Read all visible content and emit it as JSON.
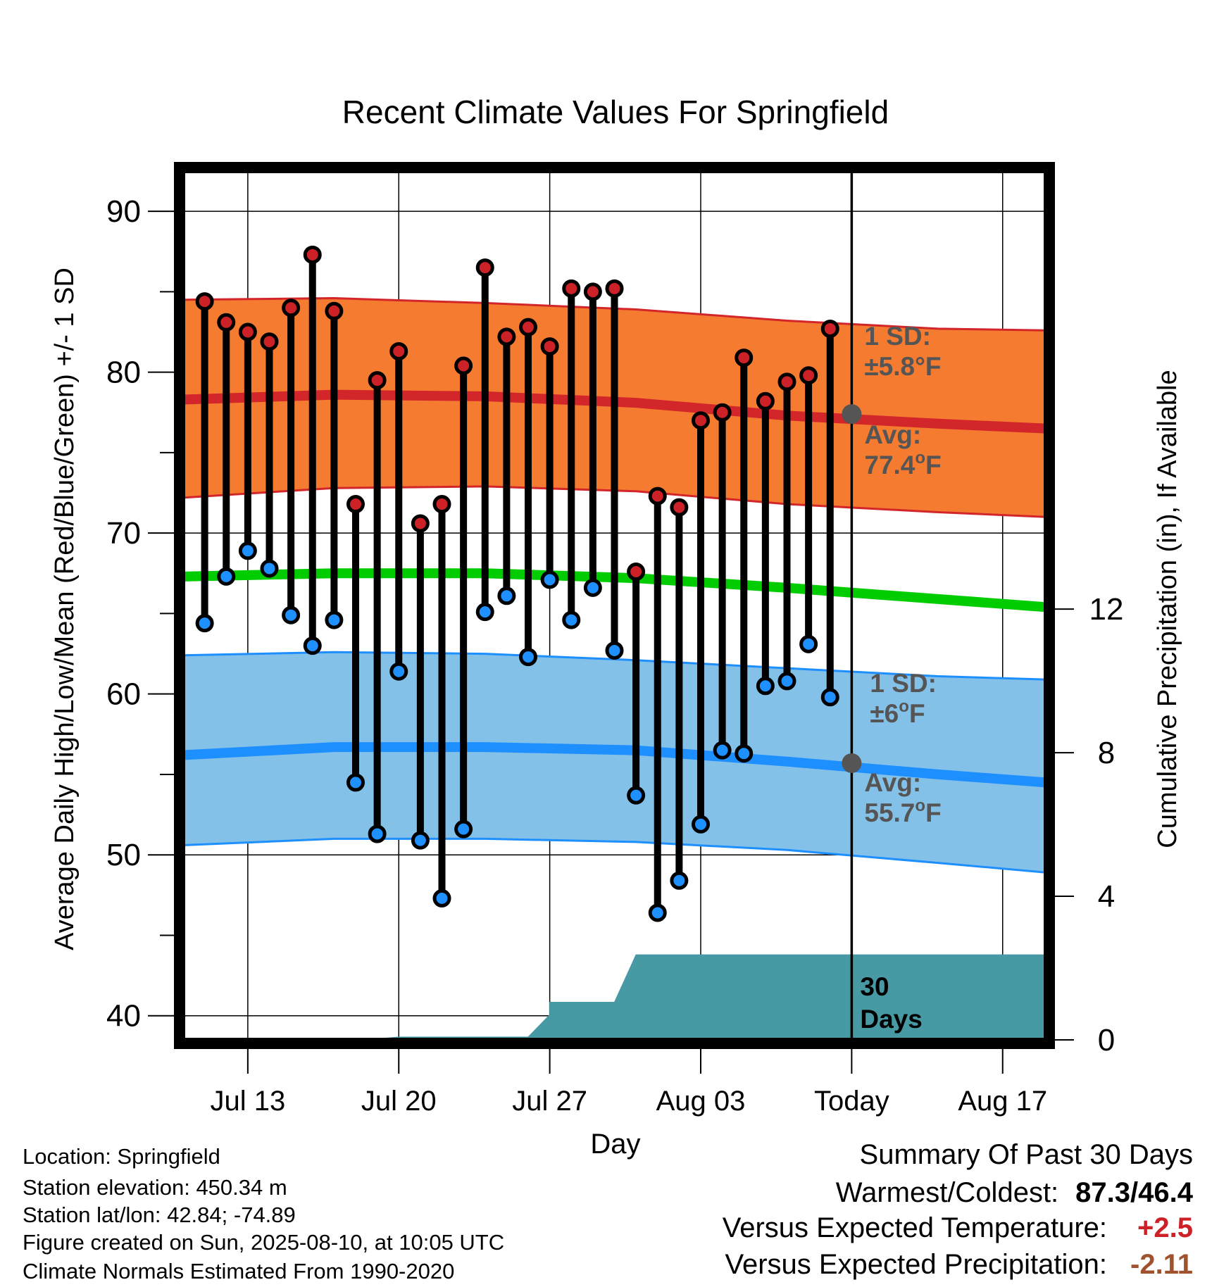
{
  "chart_data": {
    "type": "line",
    "title": "Recent Climate Values For Springfield",
    "xlabel": "Day",
    "ylabel": "Average Daily High/Low/Mean (Red/Blue/Green) +/- 1 SD",
    "y2label": "Cumulative Precipitation (in), If Available",
    "ylim": [
      38.5,
      92.5
    ],
    "y_ticks": [
      40,
      50,
      60,
      70,
      80,
      90
    ],
    "y2lim": [
      0,
      24.2
    ],
    "y2_ticks": [
      0,
      4,
      8,
      12
    ],
    "x_start": "Jul 10",
    "x_end": "Aug 19",
    "x_ticks": [
      {
        "day": "Jul 13",
        "label": "Jul 13"
      },
      {
        "day": "Jul 20",
        "label": "Jul 20"
      },
      {
        "day": "Jul 27",
        "label": "Jul 27"
      },
      {
        "day": "Aug 03",
        "label": "Aug 03"
      },
      {
        "day": "Aug 10",
        "label": "Today"
      },
      {
        "day": "Aug 17",
        "label": "Aug 17"
      }
    ],
    "today": "Aug 10",
    "grid": true,
    "colors": {
      "high_band": "#f47b30",
      "high_line": "#d2262a",
      "low_band": "#84c1e8",
      "low_line": "#1e8fff",
      "mean_line": "#00cc00",
      "precip": "#4799a3",
      "high_dot": "#cc2127",
      "low_dot": "#1e90ff",
      "marker": "#555555"
    },
    "normals": {
      "days": [
        "Jul 10",
        "Jul 17",
        "Jul 24",
        "Jul 31",
        "Aug 07",
        "Aug 14",
        "Aug 19"
      ],
      "high_avg": [
        78.3,
        78.6,
        78.5,
        78.1,
        77.3,
        76.8,
        76.5
      ],
      "high_sd_upper": [
        84.5,
        84.6,
        84.3,
        83.9,
        83.2,
        82.7,
        82.6
      ],
      "high_sd_lower": [
        72.2,
        72.8,
        72.9,
        72.6,
        71.8,
        71.3,
        71.0
      ],
      "low_avg": [
        56.2,
        56.7,
        56.7,
        56.5,
        55.8,
        55.0,
        54.5
      ],
      "low_sd_upper": [
        62.4,
        62.6,
        62.5,
        62.1,
        61.6,
        61.1,
        60.9
      ],
      "low_sd_lower": [
        50.6,
        51.0,
        51.0,
        50.8,
        50.3,
        49.5,
        48.9
      ],
      "mean_avg": [
        67.3,
        67.5,
        67.5,
        67.2,
        66.6,
        65.9,
        65.4
      ]
    },
    "observations": {
      "days": [
        "Jul 11",
        "Jul 12",
        "Jul 13",
        "Jul 14",
        "Jul 15",
        "Jul 16",
        "Jul 17",
        "Jul 18",
        "Jul 19",
        "Jul 20",
        "Jul 21",
        "Jul 22",
        "Jul 23",
        "Jul 24",
        "Jul 25",
        "Jul 26",
        "Jul 27",
        "Jul 28",
        "Jul 29",
        "Jul 30",
        "Jul 31",
        "Aug 01",
        "Aug 02",
        "Aug 03",
        "Aug 04",
        "Aug 05",
        "Aug 06",
        "Aug 07",
        "Aug 08",
        "Aug 09"
      ],
      "high": [
        84.4,
        83.1,
        82.5,
        81.9,
        84.0,
        87.3,
        83.8,
        71.8,
        79.5,
        81.3,
        70.6,
        71.8,
        80.4,
        86.5,
        82.2,
        82.8,
        81.6,
        85.2,
        85.0,
        85.2,
        67.6,
        72.3,
        71.6,
        77.0,
        77.5,
        80.9,
        78.2,
        79.4,
        79.8,
        82.7
      ],
      "low": [
        64.4,
        67.3,
        68.9,
        67.8,
        64.9,
        63.0,
        64.6,
        54.5,
        51.3,
        61.4,
        50.9,
        47.3,
        51.6,
        65.1,
        66.1,
        62.3,
        67.1,
        64.6,
        66.6,
        62.7,
        53.7,
        46.4,
        48.4,
        51.9,
        56.5,
        56.3,
        60.5,
        60.8,
        63.1,
        59.8
      ]
    },
    "precip": {
      "x": [
        "Jul 10",
        "Jul 14",
        "Jul 19",
        "Jul 20",
        "Jul 26",
        "Jul 27",
        "Jul 27",
        "Jul 30",
        "Jul 31",
        "Aug 10",
        "Aug 19"
      ],
      "values": [
        0.0,
        0.03,
        0.03,
        0.08,
        0.08,
        0.7,
        1.05,
        1.05,
        2.37,
        2.37,
        2.37
      ]
    },
    "annotations": {
      "high_sd_label": "1 SD:",
      "high_sd_value": "±5.8°F",
      "high_avg_label": "Avg:",
      "high_avg_value": "77.4°F",
      "low_sd_label": "1 SD:",
      "low_sd_value": "±6°F",
      "low_avg_label": "Avg:",
      "low_avg_value": "55.7°F",
      "high_avg_today": 77.4,
      "low_avg_today": 55.7,
      "precip_line1": "30",
      "precip_line2": "Days"
    }
  },
  "footer": {
    "location": "Location: Springfield",
    "elevation": "Station elevation: 450.34 m",
    "latlon": "Station lat/lon: 42.84; -74.89",
    "created": "Figure created on Sun, 2025-08-10, at 10:05 UTC",
    "normals": "Climate Normals Estimated From 1990-2020"
  },
  "summary": {
    "title": "Summary Of Past 30 Days",
    "warm_cold_label": "Warmest/Coldest:",
    "warm_cold_value": "87.3/46.4",
    "temp_label": "Versus Expected Temperature:",
    "temp_value": "+2.5",
    "temp_color": "#cc2127",
    "precip_label": "Versus Expected Precipitation:",
    "precip_value": "-2.11",
    "precip_color": "#a0522d"
  }
}
